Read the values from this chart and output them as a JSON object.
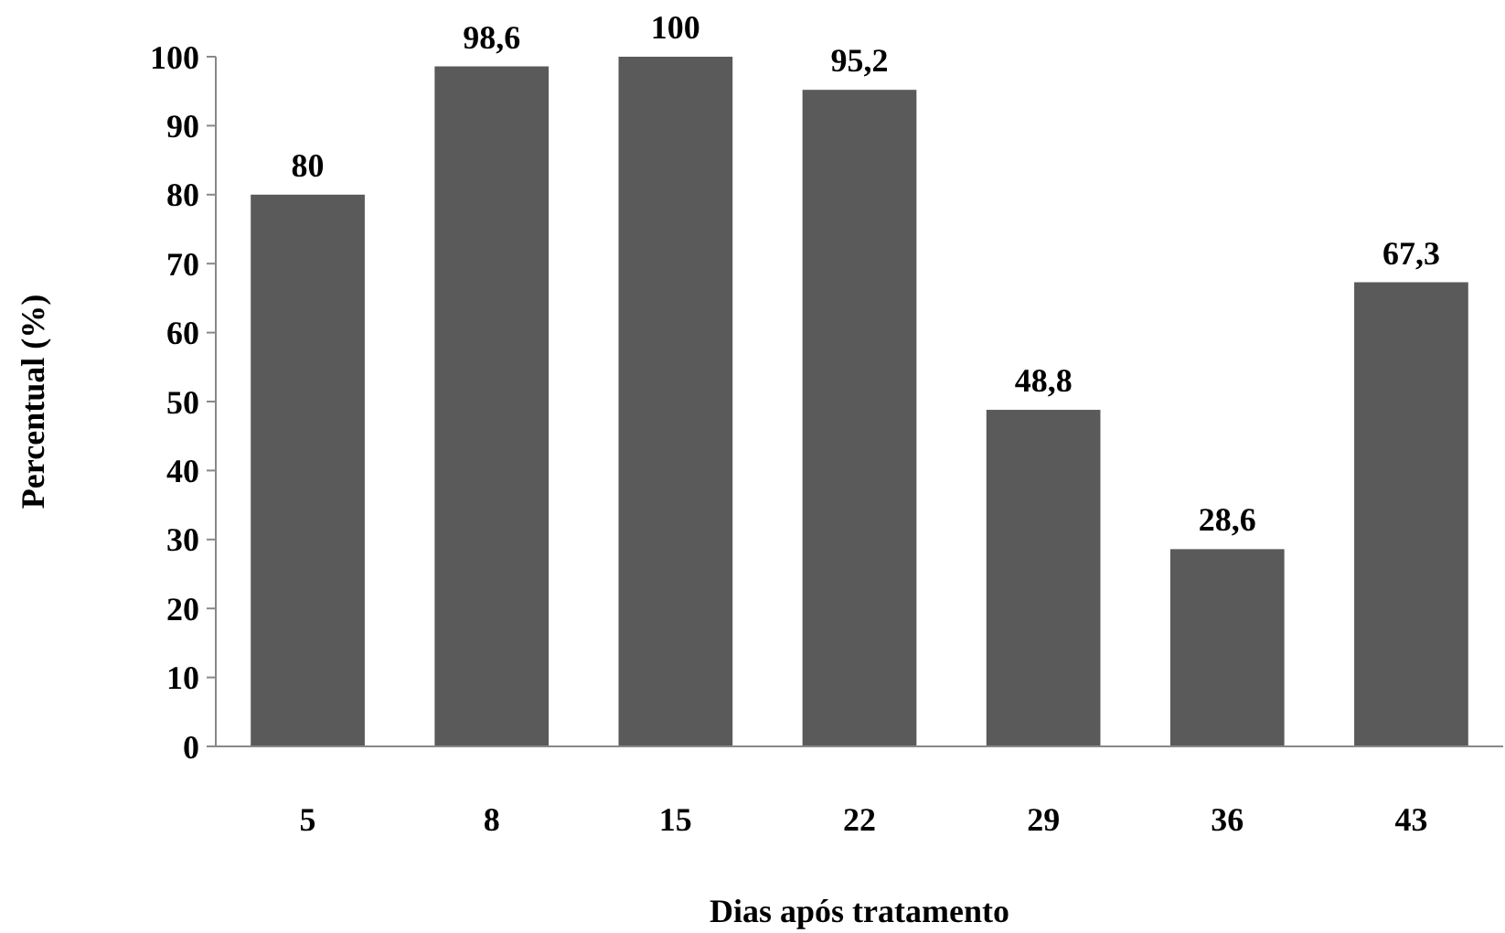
{
  "chart_data": {
    "type": "bar",
    "xlabel": "Dias após tratamento",
    "ylabel": "Percentual (%)",
    "categories": [
      "5",
      "8",
      "15",
      "22",
      "29",
      "36",
      "43"
    ],
    "values": [
      80,
      98.6,
      100,
      95.2,
      48.8,
      28.6,
      67.3
    ],
    "value_labels": [
      "80",
      "98,6",
      "100",
      "95,2",
      "48,8",
      "28,6",
      "67,3"
    ],
    "color": "#5a5a5a",
    "ylim": [
      0,
      100
    ],
    "yticks": [
      0,
      10,
      20,
      30,
      40,
      50,
      60,
      70,
      80,
      90,
      100
    ],
    "grid": false
  }
}
